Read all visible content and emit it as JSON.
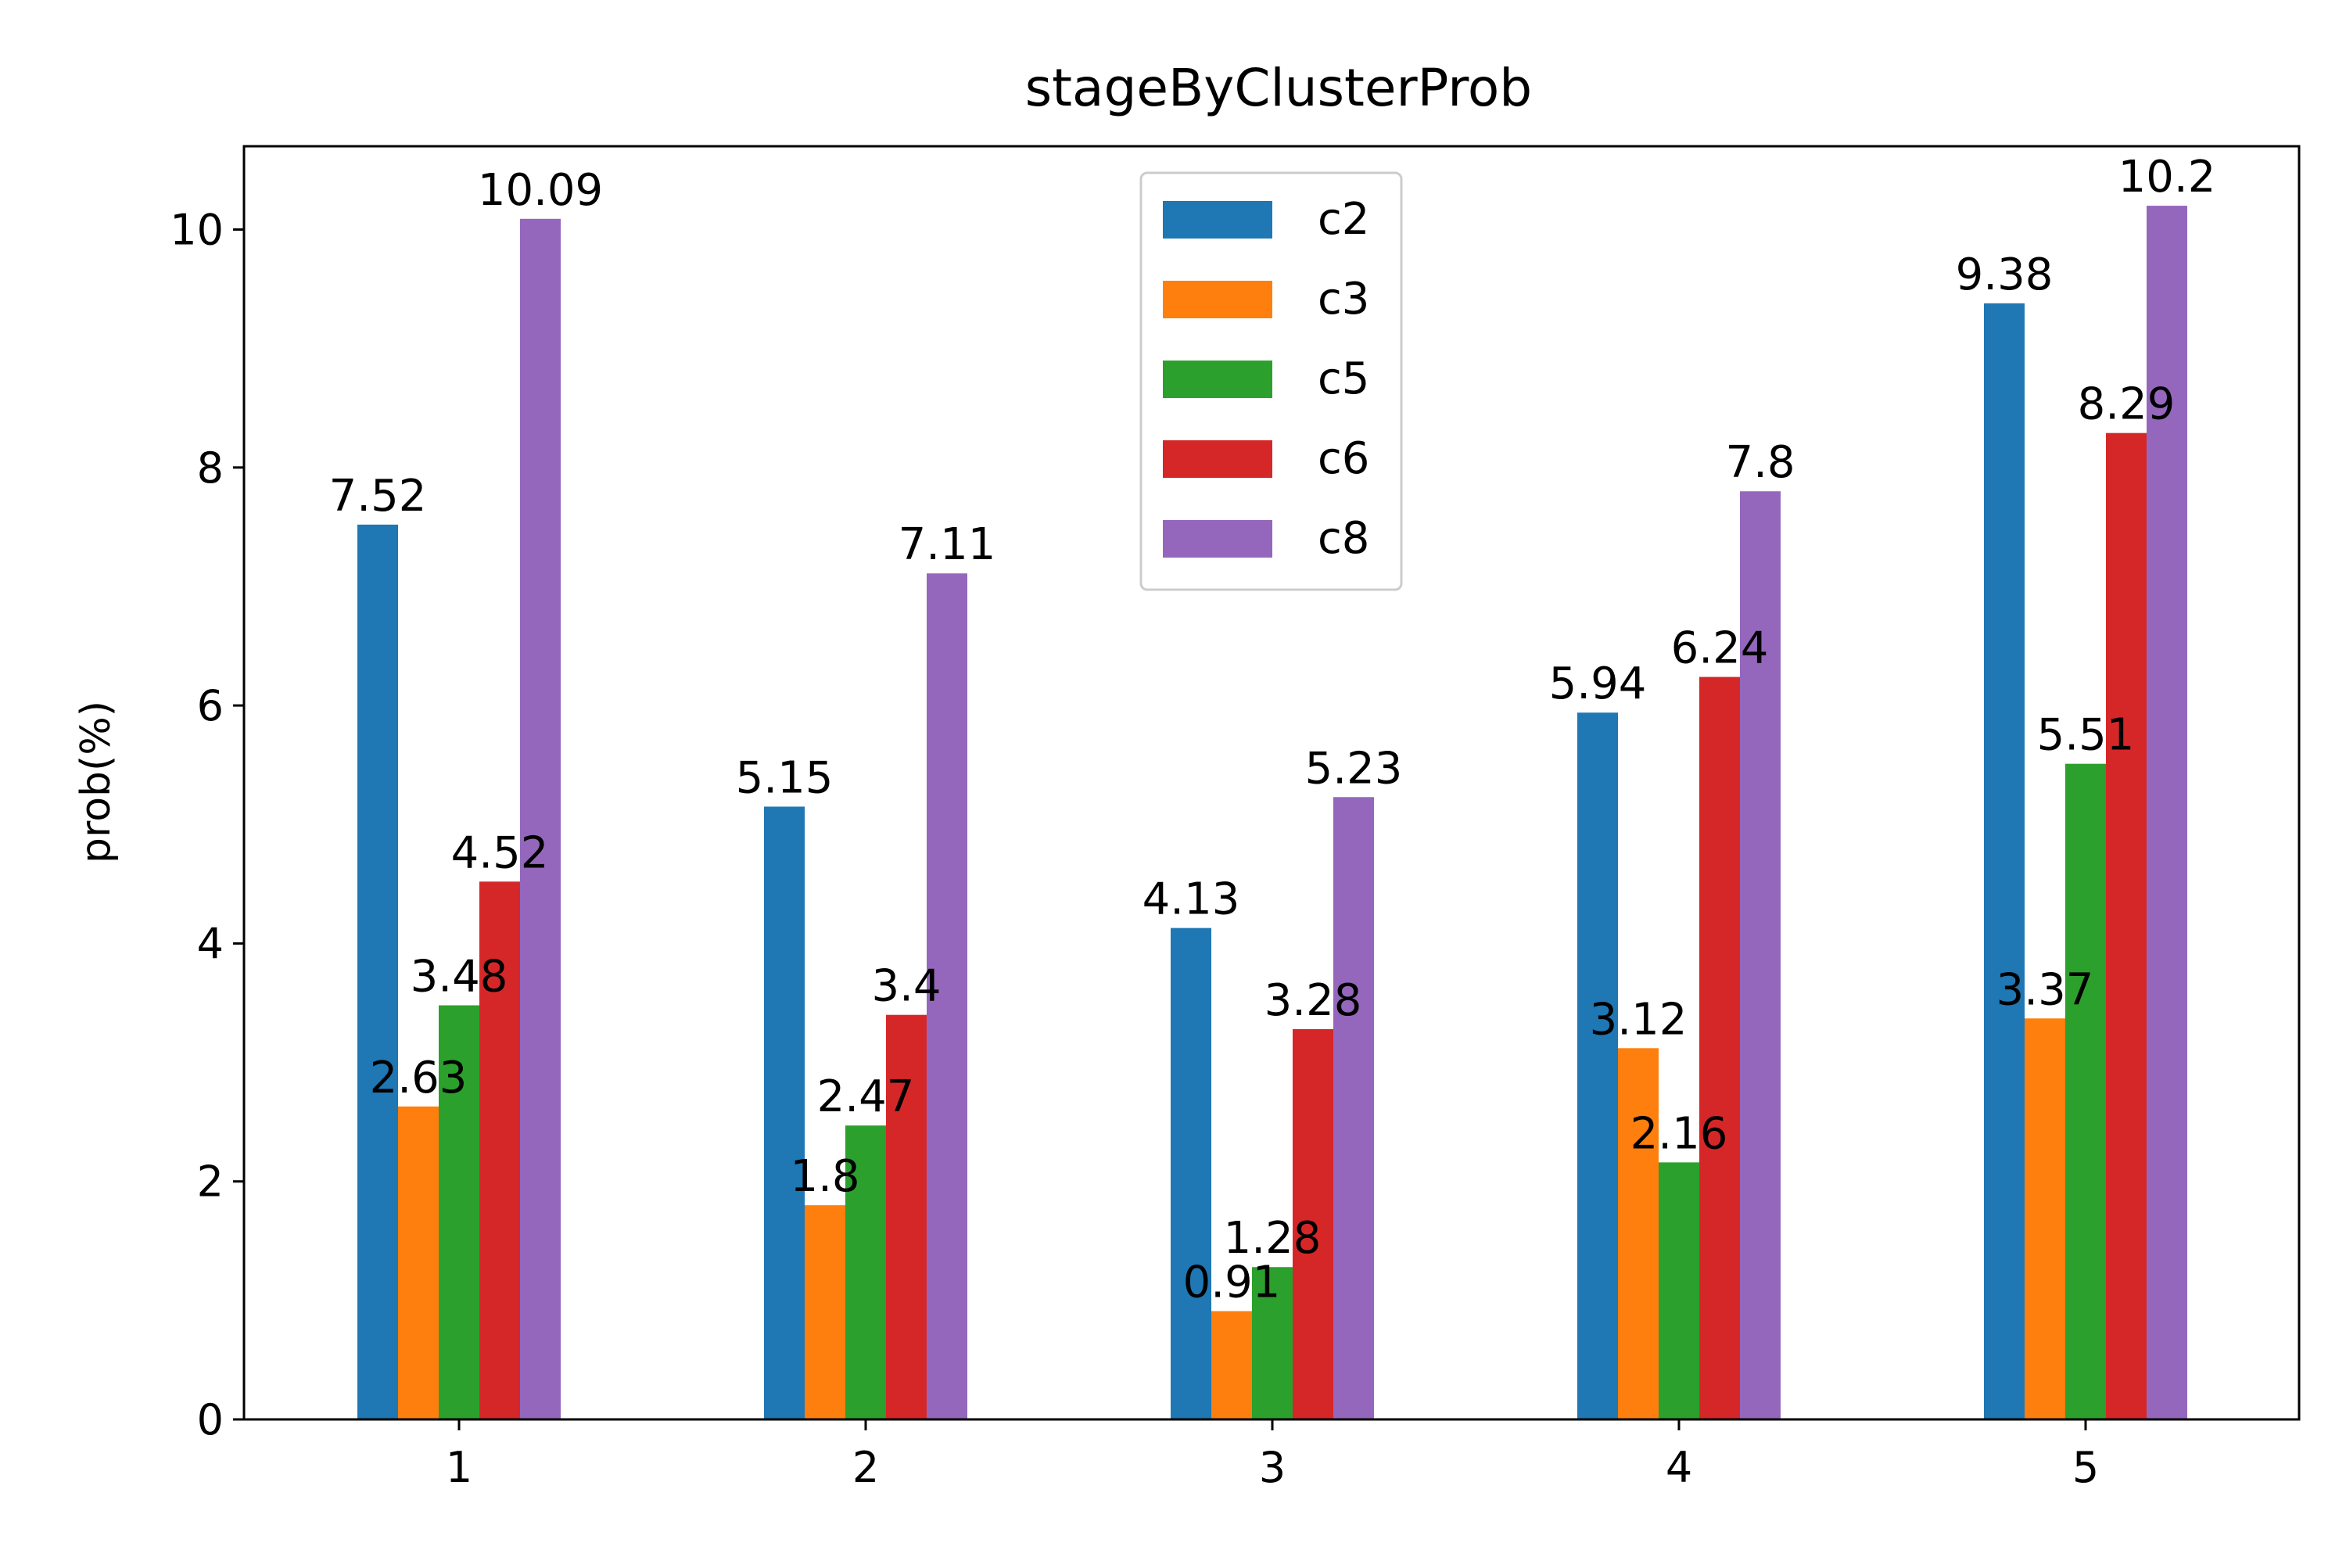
{
  "chart_data": {
    "type": "bar",
    "title": "stageByClusterProb",
    "xlabel": "",
    "ylabel": "prob(%)",
    "categories": [
      "1",
      "2",
      "3",
      "4",
      "5"
    ],
    "ylim": [
      0,
      10.7
    ],
    "yticks": [
      "0",
      "2",
      "4",
      "6",
      "8",
      "10"
    ],
    "grid": false,
    "legend_position": "top-center",
    "series": [
      {
        "name": "c2",
        "color": "#1f77b4",
        "values": [
          7.52,
          5.15,
          4.13,
          5.94,
          9.38
        ],
        "labels": [
          "7.52",
          "5.15",
          "4.13",
          "5.94",
          "9.38"
        ]
      },
      {
        "name": "c3",
        "color": "#ff7f0e",
        "values": [
          2.63,
          1.8,
          0.91,
          3.12,
          3.37
        ],
        "labels": [
          "2.63",
          "1.8",
          "0.91",
          "3.12",
          "3.37"
        ]
      },
      {
        "name": "c5",
        "color": "#2ca02c",
        "values": [
          3.48,
          2.47,
          1.28,
          2.16,
          5.51
        ],
        "labels": [
          "3.48",
          "2.47",
          "1.28",
          "2.16",
          "5.51"
        ]
      },
      {
        "name": "c6",
        "color": "#d62728",
        "values": [
          4.52,
          3.4,
          3.28,
          6.24,
          8.29
        ],
        "labels": [
          "4.52",
          "3.4",
          "3.28",
          "6.24",
          "8.29"
        ]
      },
      {
        "name": "c8",
        "color": "#9467bd",
        "values": [
          10.09,
          7.11,
          5.23,
          7.8,
          10.2
        ],
        "labels": [
          "10.09",
          "7.11",
          "5.23",
          "7.8",
          "10.2"
        ]
      }
    ]
  }
}
